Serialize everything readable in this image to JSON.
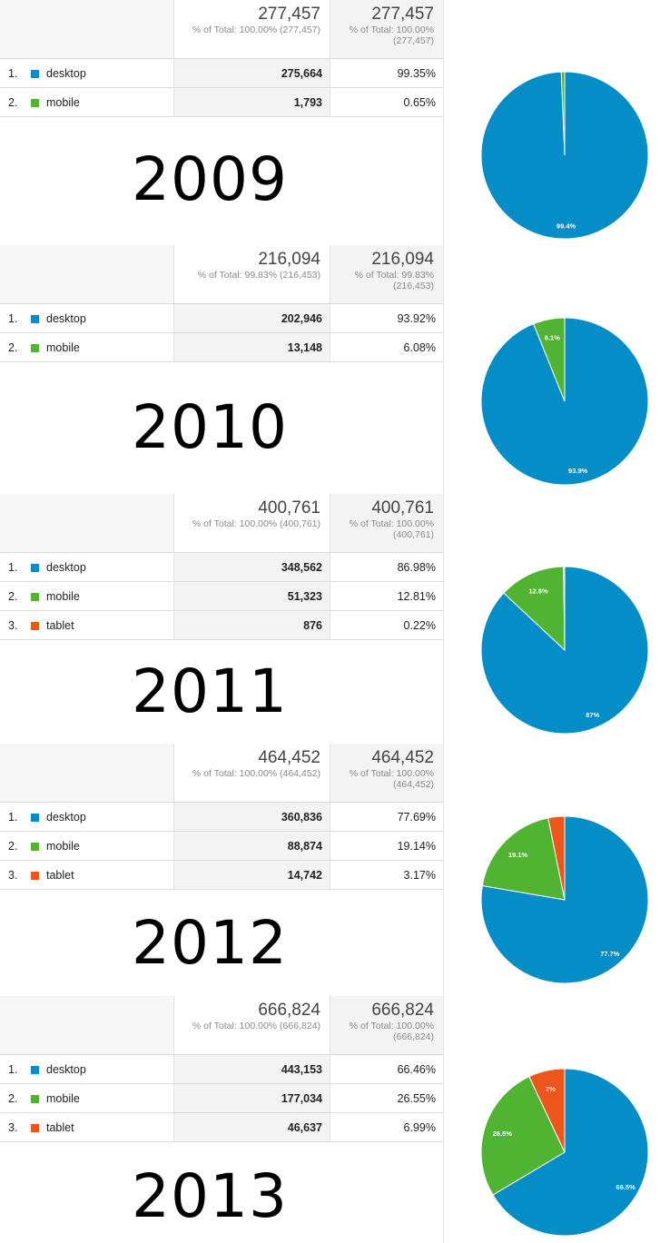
{
  "colors": {
    "desktop": "#058dc7",
    "mobile": "#50b432",
    "tablet": "#ed561b"
  },
  "chart_data": [
    {
      "type": "table",
      "year": "2009",
      "total_value": "277,457",
      "total_sub_value": "% of Total: 100.00% (277,457)",
      "total_sub_pct": "% of Total: 100.00% (277,457)",
      "rows": [
        {
          "rank": "1.",
          "label": "desktop",
          "value_text": "275,664",
          "pct_text": "99.35%",
          "value": 275664,
          "pct": 99.35,
          "color": "#058dc7"
        },
        {
          "rank": "2.",
          "label": "mobile",
          "value_text": "1,793",
          "pct_text": "0.65%",
          "value": 1793,
          "pct": 0.65,
          "color": "#50b432"
        }
      ],
      "pie_labels": [
        "99.4%",
        ""
      ]
    },
    {
      "type": "table",
      "year": "2010",
      "total_value": "216,094",
      "total_sub_value": "% of Total: 99.83% (216,453)",
      "total_sub_pct": "% of Total: 99.83% (216,453)",
      "rows": [
        {
          "rank": "1.",
          "label": "desktop",
          "value_text": "202,946",
          "pct_text": "93.92%",
          "value": 202946,
          "pct": 93.92,
          "color": "#058dc7"
        },
        {
          "rank": "2.",
          "label": "mobile",
          "value_text": "13,148",
          "pct_text": "6.08%",
          "value": 13148,
          "pct": 6.08,
          "color": "#50b432"
        }
      ],
      "pie_labels": [
        "93.9%",
        "6.1%"
      ]
    },
    {
      "type": "table",
      "year": "2011",
      "total_value": "400,761",
      "total_sub_value": "% of Total: 100.00% (400,761)",
      "total_sub_pct": "% of Total: 100.00% (400,761)",
      "rows": [
        {
          "rank": "1.",
          "label": "desktop",
          "value_text": "348,562",
          "pct_text": "86.98%",
          "value": 348562,
          "pct": 86.98,
          "color": "#058dc7"
        },
        {
          "rank": "2.",
          "label": "mobile",
          "value_text": "51,323",
          "pct_text": "12.81%",
          "value": 51323,
          "pct": 12.81,
          "color": "#50b432"
        },
        {
          "rank": "3.",
          "label": "tablet",
          "value_text": "876",
          "pct_text": "0.22%",
          "value": 876,
          "pct": 0.22,
          "color": "#ed561b"
        }
      ],
      "pie_labels": [
        "87%",
        "12.8%",
        ""
      ]
    },
    {
      "type": "table",
      "year": "2012",
      "total_value": "464,452",
      "total_sub_value": "% of Total: 100.00% (464,452)",
      "total_sub_pct": "% of Total: 100.00% (464,452)",
      "rows": [
        {
          "rank": "1.",
          "label": "desktop",
          "value_text": "360,836",
          "pct_text": "77.69%",
          "value": 360836,
          "pct": 77.69,
          "color": "#058dc7"
        },
        {
          "rank": "2.",
          "label": "mobile",
          "value_text": "88,874",
          "pct_text": "19.14%",
          "value": 88874,
          "pct": 19.14,
          "color": "#50b432"
        },
        {
          "rank": "3.",
          "label": "tablet",
          "value_text": "14,742",
          "pct_text": "3.17%",
          "value": 14742,
          "pct": 3.17,
          "color": "#ed561b"
        }
      ],
      "pie_labels": [
        "77.7%",
        "19.1%",
        ""
      ]
    },
    {
      "type": "table",
      "year": "2013",
      "total_value": "666,824",
      "total_sub_value": "% of Total: 100.00% (666,824)",
      "total_sub_pct": "% of Total: 100.00% (666,824)",
      "rows": [
        {
          "rank": "1.",
          "label": "desktop",
          "value_text": "443,153",
          "pct_text": "66.46%",
          "value": 443153,
          "pct": 66.46,
          "color": "#058dc7"
        },
        {
          "rank": "2.",
          "label": "mobile",
          "value_text": "177,034",
          "pct_text": "26.55%",
          "value": 177034,
          "pct": 26.55,
          "color": "#50b432"
        },
        {
          "rank": "3.",
          "label": "tablet",
          "value_text": "46,637",
          "pct_text": "6.99%",
          "value": 46637,
          "pct": 6.99,
          "color": "#ed561b"
        }
      ],
      "pie_labels": [
        "66.5%",
        "26.5%",
        "7%"
      ]
    }
  ]
}
